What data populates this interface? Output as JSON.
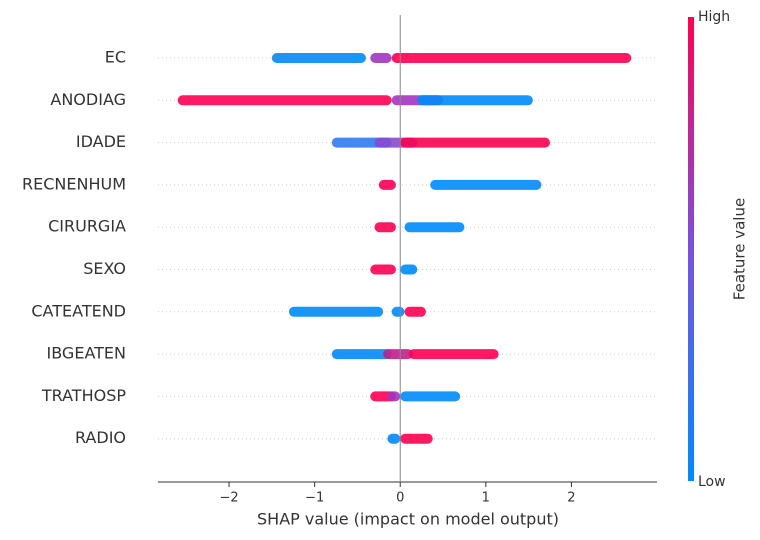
{
  "chart_data": {
    "type": "beeswarm",
    "xlabel": "SHAP value (impact on model output)",
    "categories": [
      "EC",
      "ANODIAG",
      "IDADE",
      "RECNENHUM",
      "CIRURGIA",
      "SEXO",
      "CATEATEND",
      "IBGEATEN",
      "TRATHOSP",
      "RADIO"
    ],
    "segments": [
      [
        {
          "lo": -1.5,
          "hi": -0.4,
          "color": "#008bfb"
        },
        {
          "lo": -0.35,
          "hi": -0.1,
          "color": "#a235c0"
        },
        {
          "lo": -0.1,
          "hi": 2.7,
          "color": "#ff0051"
        }
      ],
      [
        {
          "lo": -2.6,
          "hi": -0.1,
          "color": "#ff0051"
        },
        {
          "lo": -0.1,
          "hi": 0.5,
          "color": "#a235c0"
        },
        {
          "lo": 0.2,
          "hi": 1.55,
          "color": "#008bfb"
        }
      ],
      [
        {
          "lo": -0.8,
          "hi": -0.1,
          "color": "#2f7cf0"
        },
        {
          "lo": -0.3,
          "hi": 0.2,
          "color": "#8a4ad0"
        },
        {
          "lo": 0.0,
          "hi": 1.75,
          "color": "#ff0051"
        }
      ],
      [
        {
          "lo": -0.25,
          "hi": -0.05,
          "color": "#ff0051"
        },
        {
          "lo": 0.35,
          "hi": 1.65,
          "color": "#008bfb"
        }
      ],
      [
        {
          "lo": -0.3,
          "hi": -0.05,
          "color": "#ff0051"
        },
        {
          "lo": 0.05,
          "hi": 0.75,
          "color": "#008bfb"
        }
      ],
      [
        {
          "lo": -0.35,
          "hi": -0.05,
          "color": "#ff0051"
        },
        {
          "lo": 0.0,
          "hi": 0.2,
          "color": "#008bfb"
        }
      ],
      [
        {
          "lo": -1.3,
          "hi": -0.2,
          "color": "#008bfb"
        },
        {
          "lo": -0.1,
          "hi": 0.05,
          "color": "#008bfb"
        },
        {
          "lo": 0.05,
          "hi": 0.3,
          "color": "#ff0051"
        }
      ],
      [
        {
          "lo": -0.8,
          "hi": -0.1,
          "color": "#008bfb"
        },
        {
          "lo": -0.2,
          "hi": 0.15,
          "color": "#c0208a"
        },
        {
          "lo": 0.1,
          "hi": 1.15,
          "color": "#ff0051"
        }
      ],
      [
        {
          "lo": -0.35,
          "hi": -0.05,
          "color": "#ff0051"
        },
        {
          "lo": -0.15,
          "hi": 0.0,
          "color": "#a235c0"
        },
        {
          "lo": 0.0,
          "hi": 0.7,
          "color": "#008bfb"
        }
      ],
      [
        {
          "lo": -0.15,
          "hi": 0.0,
          "color": "#008bfb"
        },
        {
          "lo": 0.0,
          "hi": 0.38,
          "color": "#ff0051"
        }
      ]
    ],
    "xlim": [
      -2.83,
      3.0
    ],
    "xticks": [
      {
        "value": -2,
        "label": "−2"
      },
      {
        "value": -1,
        "label": "−1"
      },
      0,
      1,
      2
    ],
    "colorbar": {
      "label": "Feature value",
      "high": "High",
      "low": "Low",
      "colors": [
        "#008bfb",
        "#7a50e0",
        "#ff0051"
      ]
    }
  }
}
